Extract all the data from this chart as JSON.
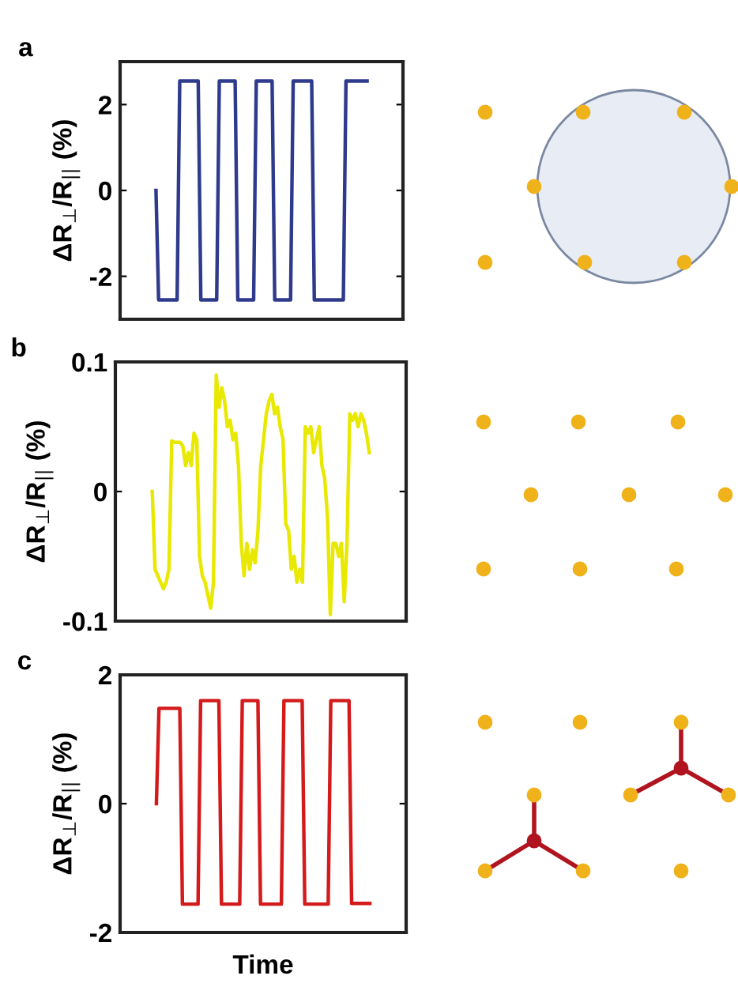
{
  "chart_data": [
    {
      "type": "line",
      "title": "a",
      "ylabel": "ΔR$_{⊥}$/R$_{||}$ (%)",
      "ylim": [
        -3,
        3
      ],
      "yticks": [
        -2,
        0,
        2
      ],
      "grid": false,
      "legend": false,
      "tick_labels": "y",
      "categories": [
        null,
        null,
        null,
        null,
        null,
        null,
        null,
        null,
        null,
        null,
        null,
        null,
        null,
        null,
        null,
        null,
        null,
        null,
        null,
        null,
        null,
        null,
        null,
        null,
        null,
        null,
        null,
        null,
        null,
        null,
        null,
        null,
        null,
        null,
        null,
        null,
        null,
        null,
        null,
        null,
        null,
        null,
        null,
        null,
        null,
        null,
        null,
        null,
        null,
        null,
        null,
        null,
        null,
        null,
        null,
        null,
        null,
        null,
        null,
        null,
        null,
        null,
        null,
        null,
        null,
        null,
        null,
        null,
        null,
        null,
        null,
        null,
        null,
        null,
        null,
        null,
        null,
        null,
        null,
        null,
        null
      ],
      "series": [
        {
          "color": "#2e3a8c",
          "values": [
            0,
            -2.55,
            -2.55,
            -2.55,
            -2.55,
            -2.55,
            -2.55,
            -2.55,
            -2.55,
            2.55,
            2.55,
            2.55,
            2.55,
            2.55,
            2.55,
            2.55,
            2.55,
            -2.55,
            -2.55,
            -2.55,
            -2.55,
            -2.55,
            -2.55,
            -2.55,
            2.55,
            2.55,
            2.55,
            2.55,
            2.55,
            2.55,
            2.55,
            -2.55,
            -2.55,
            -2.55,
            -2.55,
            -2.55,
            -2.55,
            -2.55,
            2.55,
            2.55,
            2.55,
            2.55,
            2.55,
            2.55,
            2.55,
            -2.55,
            -2.55,
            -2.55,
            -2.55,
            -2.55,
            -2.55,
            -2.55,
            2.55,
            2.55,
            2.55,
            2.55,
            2.55,
            2.55,
            2.55,
            2.55,
            -2.55,
            -2.55,
            -2.55,
            -2.55,
            -2.55,
            -2.55,
            -2.55,
            -2.55,
            -2.55,
            -2.55,
            -2.55,
            -2.55,
            2.55,
            2.55,
            2.55,
            2.55,
            2.55,
            2.55,
            2.55,
            2.55,
            2.55
          ]
        }
      ]
    },
    {
      "type": "line",
      "title": "b",
      "ylabel": "ΔR$_{⊥}$/R$_{||}$ (%)",
      "ylim": [
        -0.1,
        0.1
      ],
      "yticks": [
        -0.1,
        0,
        0.1
      ],
      "grid": false,
      "legend": false,
      "tick_labels": "y",
      "categories": [
        null,
        null,
        null,
        null,
        null,
        null,
        null,
        null,
        null,
        null,
        null,
        null,
        null,
        null,
        null,
        null,
        null,
        null,
        null,
        null,
        null,
        null,
        null,
        null,
        null,
        null,
        null,
        null,
        null,
        null,
        null,
        null,
        null,
        null,
        null,
        null,
        null,
        null,
        null,
        null,
        null,
        null,
        null,
        null,
        null,
        null,
        null,
        null,
        null,
        null,
        null,
        null,
        null,
        null,
        null,
        null,
        null,
        null,
        null,
        null,
        null,
        null,
        null,
        null,
        null,
        null,
        null,
        null,
        null,
        null,
        null,
        null,
        null,
        null,
        null,
        null,
        null,
        null,
        null
      ],
      "series": [
        {
          "color": "#e8e800",
          "values": [
            0,
            -0.06,
            -0.065,
            -0.07,
            -0.075,
            -0.07,
            -0.06,
            0.039,
            0.038,
            0.038,
            0.038,
            0.035,
            0.02,
            0.03,
            0.02,
            0.045,
            0.04,
            -0.05,
            -0.065,
            -0.07,
            -0.08,
            -0.09,
            -0.07,
            0.09,
            0.065,
            0.08,
            0.07,
            0.05,
            0.055,
            0.04,
            0.045,
            0.02,
            -0.04,
            -0.065,
            -0.04,
            -0.06,
            -0.045,
            -0.055,
            -0.03,
            0.02,
            0.04,
            0.06,
            0.07,
            0.075,
            0.06,
            0.065,
            0.05,
            0.04,
            -0.025,
            -0.03,
            -0.06,
            -0.05,
            -0.07,
            -0.06,
            -0.07,
            0.05,
            0.045,
            0.05,
            0.03,
            0.04,
            0.05,
            0.02,
            0.01,
            -0.02,
            -0.095,
            -0.04,
            -0.04,
            -0.05,
            -0.04,
            -0.085,
            -0.04,
            0.06,
            0.055,
            0.06,
            0.05,
            0.06,
            0.055,
            0.045,
            0.03
          ]
        }
      ]
    },
    {
      "type": "line",
      "title": "c",
      "xlabel": "Time",
      "ylabel": "ΔR$_{⊥}$/R$_{||}$ (%)",
      "ylim": [
        -2,
        2
      ],
      "yticks": [
        -2,
        0,
        2
      ],
      "grid": false,
      "legend": false,
      "tick_labels": "y",
      "categories": [
        null,
        null,
        null,
        null,
        null,
        null,
        null,
        null,
        null,
        null,
        null,
        null,
        null,
        null,
        null,
        null,
        null,
        null,
        null,
        null,
        null,
        null,
        null,
        null,
        null,
        null,
        null,
        null,
        null,
        null,
        null,
        null,
        null,
        null,
        null,
        null,
        null,
        null,
        null,
        null,
        null,
        null,
        null,
        null,
        null,
        null,
        null,
        null,
        null,
        null,
        null,
        null,
        null,
        null,
        null,
        null,
        null,
        null,
        null,
        null,
        null,
        null,
        null,
        null,
        null,
        null,
        null,
        null,
        null,
        null,
        null,
        null,
        null,
        null,
        null,
        null,
        null,
        null,
        null,
        null,
        null,
        null,
        null
      ],
      "series": [
        {
          "color": "#d41a1a",
          "values": [
            0,
            1.48,
            1.48,
            1.48,
            1.48,
            1.48,
            1.48,
            1.48,
            1.48,
            1.48,
            -1.56,
            -1.56,
            -1.56,
            -1.56,
            -1.56,
            -1.56,
            -1.56,
            1.6,
            1.6,
            1.6,
            1.6,
            1.6,
            1.6,
            1.6,
            1.6,
            -1.56,
            -1.56,
            -1.56,
            -1.56,
            -1.56,
            -1.56,
            -1.56,
            -1.56,
            1.6,
            1.6,
            1.6,
            1.6,
            1.6,
            1.6,
            1.6,
            -1.56,
            -1.56,
            -1.56,
            -1.56,
            -1.56,
            -1.56,
            -1.56,
            -1.56,
            -1.56,
            1.6,
            1.6,
            1.6,
            1.6,
            1.6,
            1.6,
            1.6,
            1.6,
            -1.56,
            -1.56,
            -1.56,
            -1.56,
            -1.56,
            -1.56,
            -1.56,
            -1.56,
            -1.56,
            -1.56,
            1.6,
            1.6,
            1.6,
            1.6,
            1.6,
            1.6,
            1.6,
            1.6,
            -1.55,
            -1.55,
            -1.55,
            -1.55,
            -1.55,
            -1.55,
            -1.55,
            -1.55
          ]
        }
      ]
    }
  ]
}
